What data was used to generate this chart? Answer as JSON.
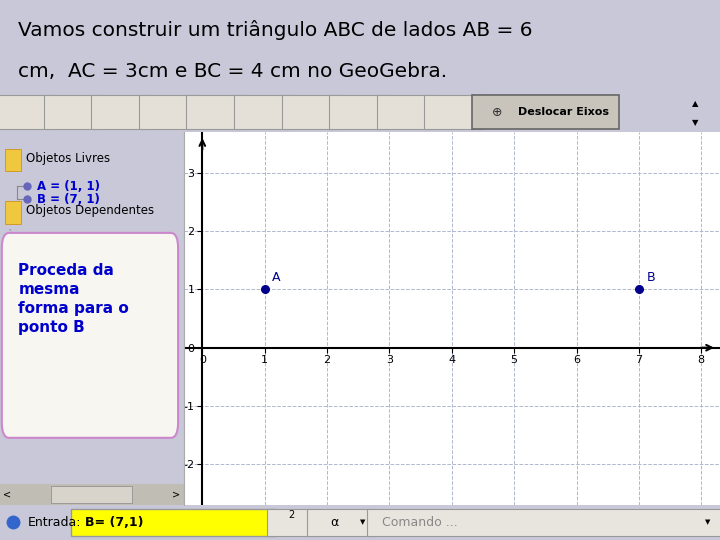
{
  "title_line1": "Vamos construir um triângulo ABC de lados AB = 6",
  "title_line2": "cm,  AC = 3cm e BC = 4 cm no GeoGebra.",
  "title_fontsize": 14.5,
  "bg_outer": "#c8c8d8",
  "bg_title": "#f0eeea",
  "bg_toolbar": "#d8d5cc",
  "bg_sidebar": "#f8f6f0",
  "bg_plot": "#ffffff",
  "bg_bottom": "#d0cec8",
  "point_A": [
    1,
    1
  ],
  "point_B": [
    7,
    1
  ],
  "label_A": "A",
  "label_B": "B",
  "point_color": "#00008b",
  "label_color": "#00008b",
  "xlim": [
    -0.3,
    8.3
  ],
  "ylim": [
    -2.7,
    3.7
  ],
  "xticks": [
    0,
    1,
    2,
    3,
    4,
    5,
    6,
    7,
    8
  ],
  "yticks": [
    -2,
    -1,
    0,
    1,
    2,
    3
  ],
  "grid_color": "#b0b8d0",
  "grid_style": "--",
  "axis_color": "#000000",
  "toolbar_label": "Deslocar Eixos",
  "objetos_livres": "Objetos Livres",
  "obj_A_text": "A = (1, 1)",
  "obj_B_text": "B = (7, 1)",
  "objetos_dep": "Objetos Dependentes",
  "proceda_text": "Proceda da\nmesma\nforma para o\nponto B",
  "proceda_color": "#0000cc",
  "proceda_box_color": "#cc88cc",
  "entrada_label": "Entrada:",
  "entrada_value": "B= (7,1)",
  "entrada_bg": "#ffff00",
  "alpha_label": "α",
  "comando_label": "Comando ...",
  "sidebar_text_color": "#0000cc",
  "tick_fontsize": 8,
  "label_fontsize": 9
}
